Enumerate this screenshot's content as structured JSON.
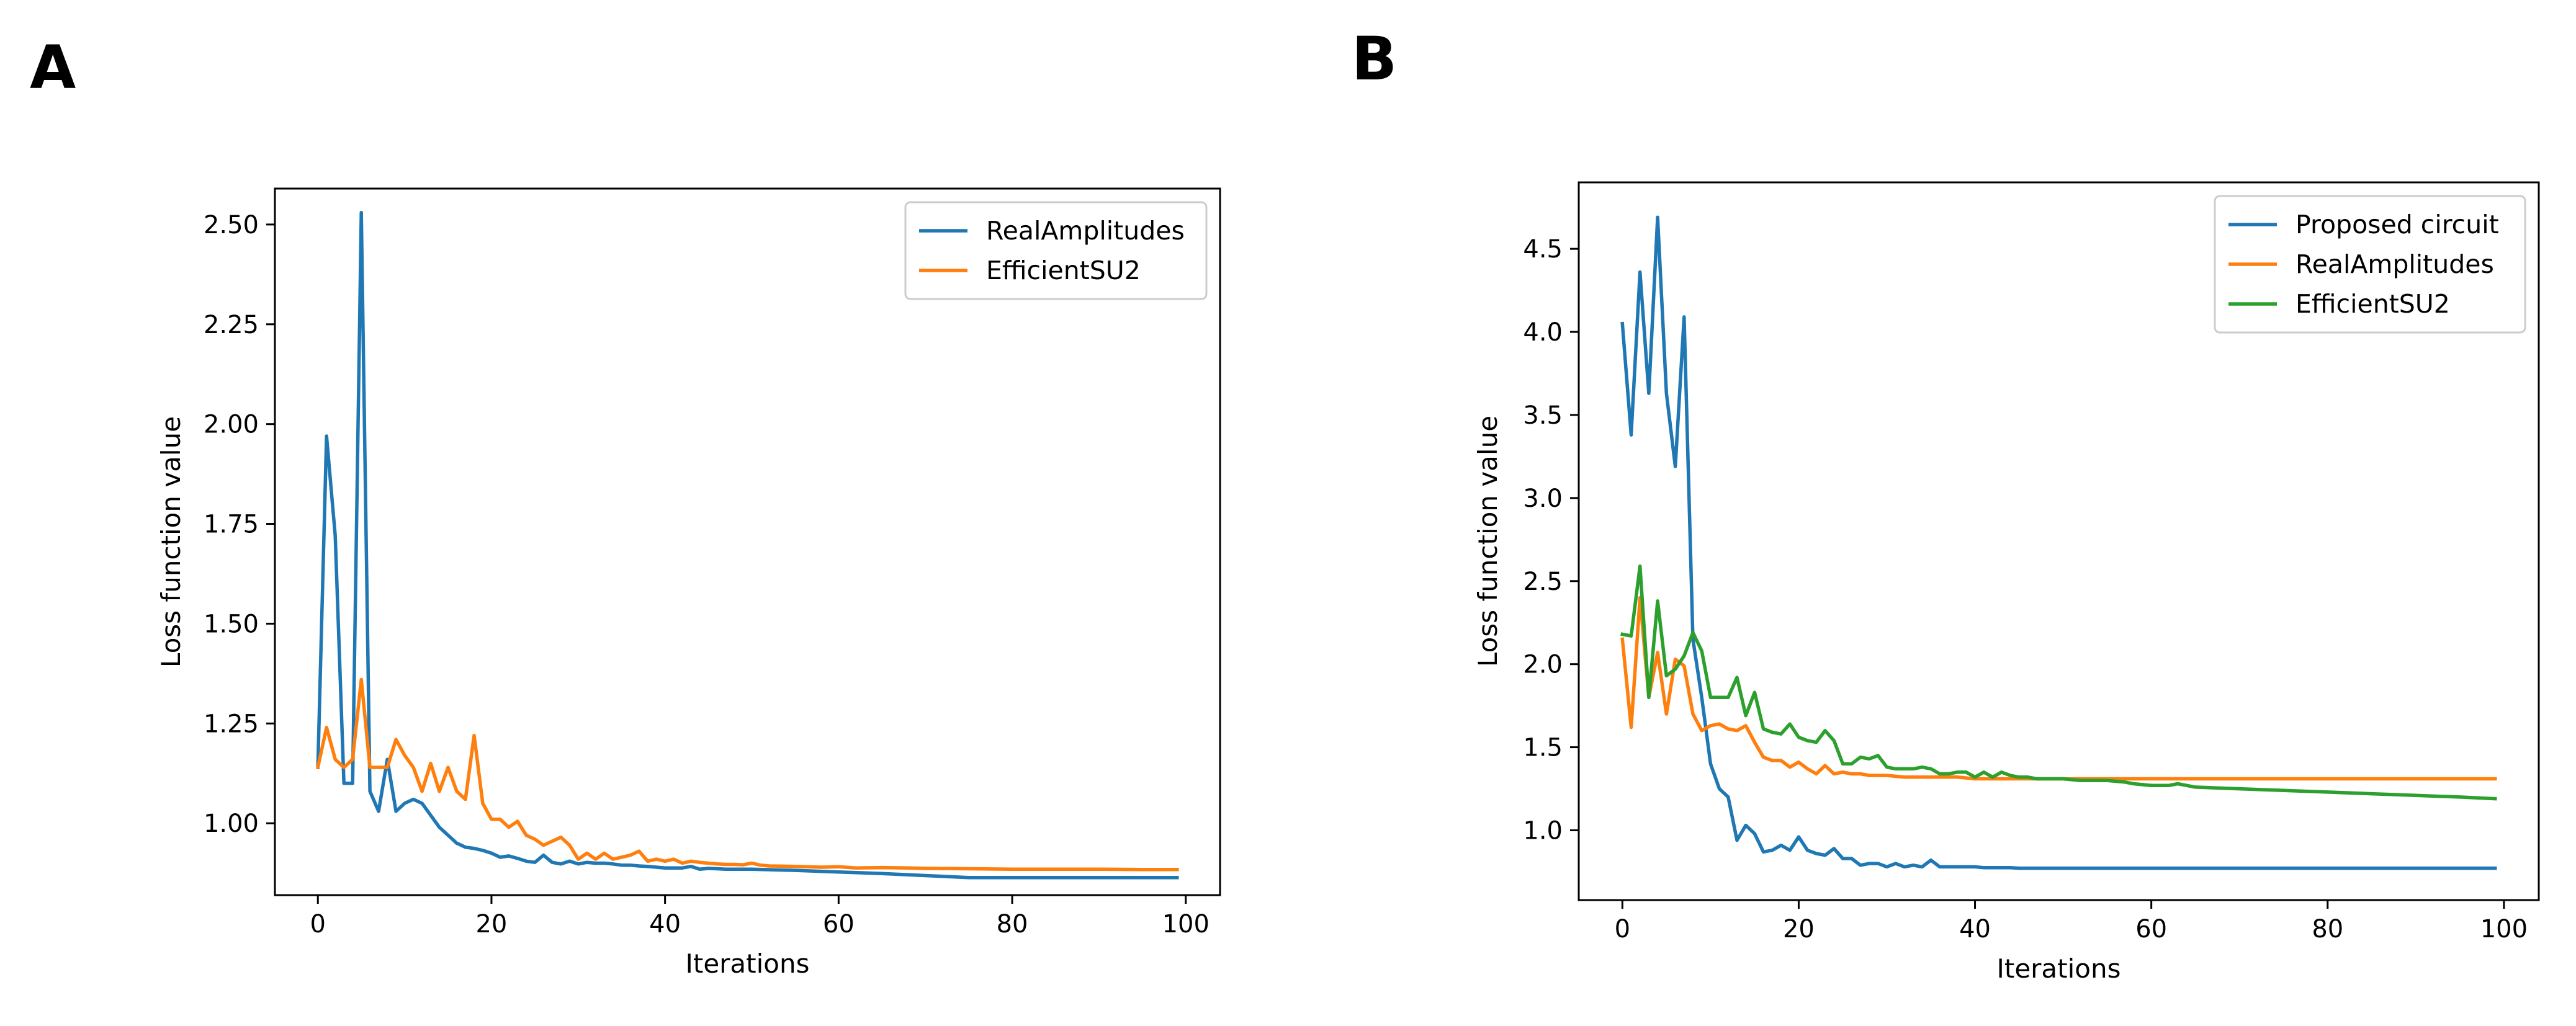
{
  "chart_data": [
    {
      "panel": "A",
      "type": "line",
      "title": "",
      "xlabel": "Iterations",
      "ylabel": "Loss function value",
      "xlim": [
        -4.95,
        103.95
      ],
      "ylim": [
        0.82,
        2.59
      ],
      "xticks": [
        0,
        20,
        40,
        60,
        80,
        100
      ],
      "xtick_labels": [
        "0",
        "20",
        "40",
        "60",
        "80",
        "100"
      ],
      "yticks": [
        1.0,
        1.25,
        1.5,
        1.75,
        2.0,
        2.25,
        2.5
      ],
      "ytick_labels": [
        "1.00",
        "1.25",
        "1.50",
        "1.75",
        "2.00",
        "2.25",
        "2.50"
      ],
      "legend_position": "top-right",
      "grid": false,
      "series": [
        {
          "name": "RealAmplitudes",
          "color": "#1f77b4",
          "x": [
            0,
            1,
            2,
            3,
            4,
            5,
            6,
            7,
            8,
            9,
            10,
            11,
            12,
            13,
            14,
            15,
            16,
            17,
            18,
            19,
            20,
            21,
            22,
            23,
            24,
            25,
            26,
            27,
            28,
            29,
            30,
            31,
            32,
            33,
            34,
            35,
            36,
            37,
            38,
            39,
            40,
            41,
            42,
            43,
            44,
            45,
            46,
            47,
            48,
            49,
            50,
            55,
            60,
            65,
            70,
            75,
            80,
            85,
            90,
            95,
            99
          ],
          "values": [
            1.14,
            1.97,
            1.72,
            1.1,
            1.1,
            2.53,
            1.08,
            1.03,
            1.16,
            1.03,
            1.05,
            1.06,
            1.05,
            1.02,
            0.99,
            0.97,
            0.95,
            0.94,
            0.937,
            0.932,
            0.925,
            0.915,
            0.918,
            0.912,
            0.905,
            0.902,
            0.92,
            0.902,
            0.898,
            0.905,
            0.898,
            0.902,
            0.9,
            0.9,
            0.898,
            0.895,
            0.895,
            0.893,
            0.892,
            0.89,
            0.888,
            0.888,
            0.888,
            0.892,
            0.885,
            0.887,
            0.886,
            0.885,
            0.885,
            0.885,
            0.885,
            0.882,
            0.878,
            0.874,
            0.869,
            0.864,
            0.864,
            0.864,
            0.864,
            0.864,
            0.864
          ]
        },
        {
          "name": "EfficientSU2",
          "color": "#ff7f0e",
          "x": [
            0,
            1,
            2,
            3,
            4,
            5,
            6,
            7,
            8,
            9,
            10,
            11,
            12,
            13,
            14,
            15,
            16,
            17,
            18,
            19,
            20,
            21,
            22,
            23,
            24,
            25,
            26,
            27,
            28,
            29,
            30,
            31,
            32,
            33,
            34,
            35,
            36,
            37,
            38,
            39,
            40,
            41,
            42,
            43,
            44,
            45,
            46,
            47,
            48,
            49,
            50,
            51,
            52,
            55,
            58,
            60,
            62,
            65,
            68,
            70,
            75,
            80,
            85,
            90,
            95,
            99
          ],
          "values": [
            1.14,
            1.24,
            1.16,
            1.14,
            1.16,
            1.36,
            1.14,
            1.14,
            1.14,
            1.21,
            1.17,
            1.14,
            1.08,
            1.15,
            1.08,
            1.14,
            1.08,
            1.06,
            1.22,
            1.05,
            1.01,
            1.01,
            0.99,
            1.005,
            0.97,
            0.96,
            0.945,
            0.955,
            0.965,
            0.945,
            0.91,
            0.925,
            0.91,
            0.925,
            0.91,
            0.915,
            0.92,
            0.93,
            0.905,
            0.91,
            0.905,
            0.91,
            0.9,
            0.905,
            0.902,
            0.9,
            0.898,
            0.897,
            0.897,
            0.896,
            0.9,
            0.895,
            0.893,
            0.892,
            0.89,
            0.891,
            0.888,
            0.889,
            0.888,
            0.887,
            0.886,
            0.885,
            0.885,
            0.885,
            0.884,
            0.884
          ]
        }
      ]
    },
    {
      "panel": "B",
      "type": "line",
      "title": "",
      "xlabel": "Iterations",
      "ylabel": "Loss function value",
      "xlim": [
        -4.95,
        103.95
      ],
      "ylim": [
        0.58,
        4.9
      ],
      "xticks": [
        0,
        20,
        40,
        60,
        80,
        100
      ],
      "xtick_labels": [
        "0",
        "20",
        "40",
        "60",
        "80",
        "100"
      ],
      "yticks": [
        1.0,
        1.5,
        2.0,
        2.5,
        3.0,
        3.5,
        4.0,
        4.5
      ],
      "ytick_labels": [
        "1.0",
        "1.5",
        "2.0",
        "2.5",
        "3.0",
        "3.5",
        "4.0",
        "4.5"
      ],
      "legend_position": "top-right",
      "grid": false,
      "series": [
        {
          "name": "Proposed circuit",
          "color": "#1f77b4",
          "x": [
            0,
            1,
            2,
            3,
            4,
            5,
            6,
            7,
            8,
            9,
            10,
            11,
            12,
            13,
            14,
            15,
            16,
            17,
            18,
            19,
            20,
            21,
            22,
            23,
            24,
            25,
            26,
            27,
            28,
            29,
            30,
            31,
            32,
            33,
            34,
            35,
            36,
            37,
            38,
            39,
            40,
            41,
            42,
            43,
            44,
            45,
            50,
            60,
            70,
            80,
            90,
            99
          ],
          "values": [
            4.05,
            3.38,
            4.36,
            3.63,
            4.69,
            3.63,
            3.19,
            4.09,
            2.15,
            1.8,
            1.4,
            1.25,
            1.2,
            0.94,
            1.03,
            0.98,
            0.87,
            0.88,
            0.91,
            0.88,
            0.96,
            0.88,
            0.86,
            0.85,
            0.89,
            0.83,
            0.83,
            0.79,
            0.8,
            0.8,
            0.78,
            0.8,
            0.78,
            0.79,
            0.78,
            0.82,
            0.78,
            0.78,
            0.78,
            0.78,
            0.78,
            0.775,
            0.775,
            0.775,
            0.775,
            0.772,
            0.772,
            0.772,
            0.772,
            0.772,
            0.772,
            0.772
          ]
        },
        {
          "name": "RealAmplitudes",
          "color": "#ff7f0e",
          "x": [
            0,
            1,
            2,
            3,
            4,
            5,
            6,
            7,
            8,
            9,
            10,
            11,
            12,
            13,
            14,
            15,
            16,
            17,
            18,
            19,
            20,
            21,
            22,
            23,
            24,
            25,
            26,
            27,
            28,
            29,
            30,
            32,
            35,
            38,
            40,
            45,
            50,
            55,
            60,
            70,
            80,
            90,
            99
          ],
          "values": [
            2.15,
            1.62,
            2.4,
            1.8,
            2.07,
            1.7,
            2.03,
            1.99,
            1.7,
            1.6,
            1.63,
            1.64,
            1.61,
            1.6,
            1.63,
            1.53,
            1.44,
            1.42,
            1.42,
            1.38,
            1.41,
            1.37,
            1.34,
            1.39,
            1.34,
            1.35,
            1.34,
            1.34,
            1.33,
            1.33,
            1.33,
            1.32,
            1.32,
            1.32,
            1.31,
            1.31,
            1.31,
            1.31,
            1.31,
            1.31,
            1.31,
            1.31,
            1.31
          ]
        },
        {
          "name": "EfficientSU2",
          "color": "#2ca02c",
          "x": [
            0,
            1,
            2,
            3,
            4,
            5,
            6,
            7,
            8,
            9,
            10,
            11,
            12,
            13,
            14,
            15,
            16,
            17,
            18,
            19,
            20,
            21,
            22,
            23,
            24,
            25,
            26,
            27,
            28,
            29,
            30,
            31,
            32,
            33,
            34,
            35,
            36,
            37,
            38,
            39,
            40,
            41,
            42,
            43,
            44,
            45,
            46,
            47,
            48,
            49,
            50,
            52,
            55,
            57,
            58,
            60,
            62,
            63,
            65,
            70,
            75,
            80,
            85,
            90,
            95,
            99
          ],
          "values": [
            2.18,
            2.17,
            2.59,
            1.8,
            2.38,
            1.93,
            1.97,
            2.05,
            2.19,
            2.08,
            1.8,
            1.8,
            1.8,
            1.92,
            1.69,
            1.83,
            1.61,
            1.59,
            1.58,
            1.64,
            1.56,
            1.54,
            1.53,
            1.6,
            1.54,
            1.4,
            1.4,
            1.44,
            1.43,
            1.45,
            1.38,
            1.37,
            1.37,
            1.37,
            1.38,
            1.37,
            1.34,
            1.34,
            1.35,
            1.35,
            1.32,
            1.35,
            1.32,
            1.35,
            1.33,
            1.32,
            1.32,
            1.31,
            1.31,
            1.31,
            1.31,
            1.3,
            1.3,
            1.29,
            1.28,
            1.27,
            1.27,
            1.28,
            1.26,
            1.25,
            1.24,
            1.23,
            1.22,
            1.21,
            1.2,
            1.19
          ]
        }
      ]
    }
  ],
  "panels": {
    "a_letter": "A",
    "b_letter": "B"
  }
}
